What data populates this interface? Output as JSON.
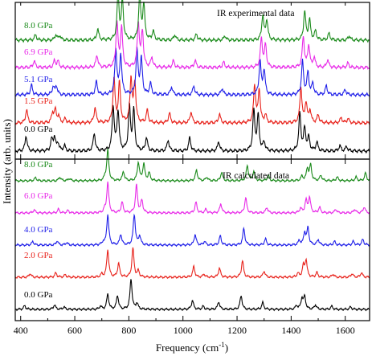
{
  "chart_data": {
    "type": "line",
    "xlabel": "Frequency (cm",
    "xlabel_sup": "-1",
    "xlabel_end": ")",
    "ylabel": "Intensity (arb. units)",
    "xlim": [
      380,
      1690
    ],
    "x_ticks": [
      400,
      600,
      800,
      1000,
      1200,
      1400,
      1600
    ],
    "x_tick_labels": [
      "400",
      "600",
      "800",
      "1000",
      "1200",
      "1400",
      "1600"
    ],
    "panels": [
      {
        "title": "IR experimental data",
        "series": [
          {
            "name": "0.0 GPa",
            "color": "#000000",
            "offset": 0,
            "peaks": [
              [
                420,
                0.35
              ],
              [
                515,
                0.25
              ],
              [
                525,
                0.3
              ],
              [
                538,
                0.18
              ],
              [
                562,
                0.12
              ],
              [
                672,
                0.4
              ],
              [
                742,
                1.0
              ],
              [
                760,
                0.9
              ],
              [
                802,
                1.0
              ],
              [
                818,
                0.9
              ],
              [
                865,
                0.3
              ],
              [
                945,
                0.25
              ],
              [
                1025,
                0.3
              ],
              [
                1132,
                0.22
              ],
              [
                1262,
                0.9
              ],
              [
                1278,
                0.8
              ],
              [
                1300,
                0.2
              ],
              [
                1432,
                0.85
              ],
              [
                1450,
                0.5
              ],
              [
                1465,
                0.3
              ],
              [
                1495,
                0.2
              ],
              [
                1580,
                0.12
              ],
              [
                1605,
                0.1
              ]
            ]
          },
          {
            "name": "1.5 GPa",
            "color": "#e8231c",
            "offset": 1,
            "peaks": [
              [
                422,
                0.3
              ],
              [
                518,
                0.22
              ],
              [
                528,
                0.28
              ],
              [
                540,
                0.15
              ],
              [
                565,
                0.1
              ],
              [
                675,
                0.35
              ],
              [
                745,
                1.0
              ],
              [
                765,
                0.9
              ],
              [
                808,
                1.0
              ],
              [
                822,
                0.9
              ],
              [
                868,
                0.28
              ],
              [
                950,
                0.22
              ],
              [
                1030,
                0.25
              ],
              [
                1135,
                0.2
              ],
              [
                1265,
                0.85
              ],
              [
                1282,
                0.75
              ],
              [
                1305,
                0.18
              ],
              [
                1436,
                0.8
              ],
              [
                1455,
                0.45
              ],
              [
                1470,
                0.28
              ],
              [
                1500,
                0.18
              ],
              [
                1585,
                0.12
              ],
              [
                1610,
                0.1
              ]
            ]
          },
          {
            "name": "5.1 GPa",
            "color": "#1f1fe8",
            "offset": 2,
            "peaks": [
              [
                440,
                0.22
              ],
              [
                520,
                0.18
              ],
              [
                532,
                0.2
              ],
              [
                680,
                0.3
              ],
              [
                752,
                1.0
              ],
              [
                770,
                0.9
              ],
              [
                830,
                1.0
              ],
              [
                846,
                0.8
              ],
              [
                880,
                0.25
              ],
              [
                958,
                0.18
              ],
              [
                1040,
                0.2
              ],
              [
                1145,
                0.15
              ],
              [
                1285,
                0.75
              ],
              [
                1300,
                0.55
              ],
              [
                1442,
                0.75
              ],
              [
                1462,
                0.5
              ],
              [
                1480,
                0.25
              ],
              [
                1530,
                0.2
              ],
              [
                1600,
                0.12
              ]
            ]
          },
          {
            "name": "6.9 GPa",
            "color": "#e82ae8",
            "offset": 3,
            "peaks": [
              [
                450,
                0.15
              ],
              [
                525,
                0.15
              ],
              [
                538,
                0.14
              ],
              [
                682,
                0.28
              ],
              [
                756,
                1.0
              ],
              [
                773,
                0.9
              ],
              [
                835,
                1.0
              ],
              [
                850,
                0.8
              ],
              [
                885,
                0.22
              ],
              [
                965,
                0.15
              ],
              [
                1045,
                0.16
              ],
              [
                1150,
                0.12
              ],
              [
                1290,
                0.65
              ],
              [
                1305,
                0.5
              ],
              [
                1445,
                0.7
              ],
              [
                1465,
                0.5
              ],
              [
                1485,
                0.22
              ],
              [
                1535,
                0.18
              ],
              [
                1610,
                0.1
              ]
            ]
          },
          {
            "name": "8.0 GPa",
            "color": "#1a8a1a",
            "offset": 4,
            "peaks": [
              [
                455,
                0.12
              ],
              [
                530,
                0.12
              ],
              [
                545,
                0.1
              ],
              [
                685,
                0.25
              ],
              [
                760,
                1.0
              ],
              [
                776,
                0.9
              ],
              [
                840,
                1.0
              ],
              [
                855,
                0.8
              ],
              [
                890,
                0.2
              ],
              [
                970,
                0.12
              ],
              [
                1050,
                0.14
              ],
              [
                1155,
                0.1
              ],
              [
                1295,
                0.55
              ],
              [
                1310,
                0.45
              ],
              [
                1450,
                0.65
              ],
              [
                1468,
                0.45
              ],
              [
                1490,
                0.2
              ],
              [
                1540,
                0.15
              ],
              [
                1615,
                0.1
              ]
            ]
          }
        ]
      },
      {
        "title": "IR calculated data",
        "series": [
          {
            "name": "0.0 GPa",
            "color": "#000000",
            "offset": 0,
            "peaks": [
              [
                415,
                0.12
              ],
              [
                525,
                0.15
              ],
              [
                560,
                0.08
              ],
              [
                695,
                0.1
              ],
              [
                722,
                0.5
              ],
              [
                758,
                0.45
              ],
              [
                808,
                1.0
              ],
              [
                830,
                0.2
              ],
              [
                1035,
                0.3
              ],
              [
                1075,
                0.1
              ],
              [
                1132,
                0.25
              ],
              [
                1215,
                0.45
              ],
              [
                1295,
                0.22
              ],
              [
                1420,
                0.12
              ],
              [
                1440,
                0.35
              ],
              [
                1450,
                0.4
              ],
              [
                1490,
                0.15
              ],
              [
                1550,
                0.1
              ],
              [
                1620,
                0.08
              ]
            ]
          },
          {
            "name": "2.0 GPa",
            "color": "#e8231c",
            "offset": 1,
            "peaks": [
              [
                435,
                0.12
              ],
              [
                530,
                0.14
              ],
              [
                565,
                0.08
              ],
              [
                700,
                0.1
              ],
              [
                722,
                0.9
              ],
              [
                762,
                0.45
              ],
              [
                815,
                0.95
              ],
              [
                835,
                0.2
              ],
              [
                1040,
                0.35
              ],
              [
                1078,
                0.1
              ],
              [
                1135,
                0.3
              ],
              [
                1220,
                0.55
              ],
              [
                1300,
                0.2
              ],
              [
                1425,
                0.12
              ],
              [
                1445,
                0.35
              ],
              [
                1455,
                0.55
              ],
              [
                1495,
                0.15
              ],
              [
                1555,
                0.1
              ],
              [
                1625,
                0.12
              ],
              [
                1660,
                0.15
              ]
            ]
          },
          {
            "name": "4.0 GPa",
            "color": "#1f1fe8",
            "offset": 2,
            "peaks": [
              [
                445,
                0.12
              ],
              [
                535,
                0.14
              ],
              [
                570,
                0.08
              ],
              [
                705,
                0.1
              ],
              [
                722,
                1.0
              ],
              [
                770,
                0.35
              ],
              [
                820,
                1.0
              ],
              [
                840,
                0.3
              ],
              [
                1045,
                0.35
              ],
              [
                1080,
                0.12
              ],
              [
                1138,
                0.3
              ],
              [
                1225,
                0.55
              ],
              [
                1305,
                0.2
              ],
              [
                1430,
                0.15
              ],
              [
                1450,
                0.4
              ],
              [
                1462,
                0.55
              ],
              [
                1500,
                0.18
              ],
              [
                1560,
                0.12
              ],
              [
                1630,
                0.12
              ],
              [
                1665,
                0.18
              ]
            ]
          },
          {
            "name": "6.0 GPa",
            "color": "#e82ae8",
            "offset": 3,
            "peaks": [
              [
                450,
                0.1
              ],
              [
                540,
                0.12
              ],
              [
                575,
                0.08
              ],
              [
                710,
                0.1
              ],
              [
                722,
                1.0
              ],
              [
                775,
                0.35
              ],
              [
                828,
                0.9
              ],
              [
                848,
                0.4
              ],
              [
                1048,
                0.35
              ],
              [
                1085,
                0.12
              ],
              [
                1140,
                0.3
              ],
              [
                1232,
                0.5
              ],
              [
                1310,
                0.18
              ],
              [
                1435,
                0.15
              ],
              [
                1455,
                0.4
              ],
              [
                1468,
                0.5
              ],
              [
                1505,
                0.18
              ],
              [
                1565,
                0.12
              ],
              [
                1635,
                0.12
              ],
              [
                1670,
                0.2
              ]
            ]
          },
          {
            "name": "8.0 GPa",
            "color": "#1a8a1a",
            "offset": 4,
            "peaks": [
              [
                455,
                0.1
              ],
              [
                545,
                0.12
              ],
              [
                580,
                0.08
              ],
              [
                712,
                0.1
              ],
              [
                722,
                1.0
              ],
              [
                780,
                0.3
              ],
              [
                835,
                0.6
              ],
              [
                855,
                0.55
              ],
              [
                875,
                0.25
              ],
              [
                1050,
                0.35
              ],
              [
                1088,
                0.12
              ],
              [
                1143,
                0.28
              ],
              [
                1238,
                0.5
              ],
              [
                1262,
                0.3
              ],
              [
                1315,
                0.18
              ],
              [
                1440,
                0.15
              ],
              [
                1460,
                0.4
              ],
              [
                1472,
                0.5
              ],
              [
                1510,
                0.18
              ],
              [
                1570,
                0.12
              ],
              [
                1640,
                0.12
              ],
              [
                1675,
                0.25
              ]
            ]
          }
        ]
      }
    ]
  }
}
